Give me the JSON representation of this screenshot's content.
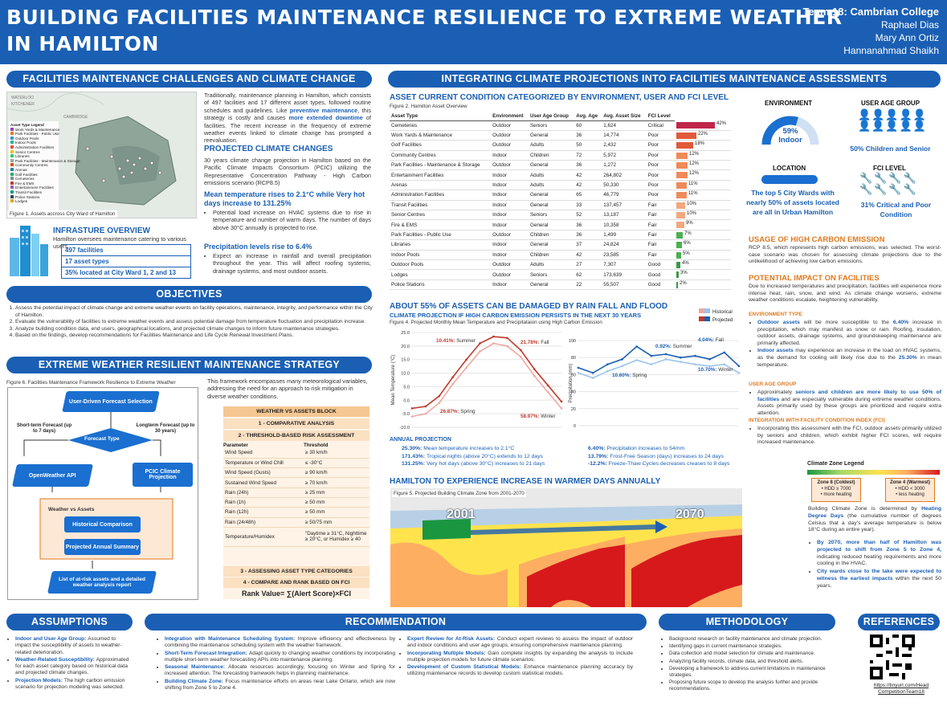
{
  "header": {
    "title_line1": "BUILDING FACILITIES MAINTENANCE RESILIENCE TO EXTREME WEATHER",
    "title_line2": "IN HAMILTON",
    "team": "Team 18: Cambrian College",
    "members": [
      "Raphael Dias",
      "Mary Ann Ortiz",
      "Hannanahmad Shaikh"
    ]
  },
  "challenges": {
    "heading": "FACILITIES MAINTENANCE CHALLENGES AND CLIMATE CHANGE",
    "p1a": "Traditionally, maintenance planning in Hamilton, which consists of 497 facilities and 17 different asset types, followed routine schedules and guidelines. Like ",
    "p1b": "preventive maintenance",
    "p1c": ", this strategy is costly and causes ",
    "p1d": "more extended downtime",
    "p1e": " of facilities. The recent increase in the frequency of extreme weather events linked to climate change has prompted a reevaluation.",
    "proj_h": "PROJECTED CLIMATE CHANGES",
    "proj_p": "30 years climate change projection in Hamilton based on the Pacific Climate Impacts Consortium (PCIC) utilizing the Representative Concentration Pathway - High Carbon emissions scenario (RCP8.5)",
    "temp_h": "Mean temperature rises to 2.1°C while Very hot days increase to 131.25%",
    "temp_b": "Potential load increase on HVAC systems due to rise in temperature and number of warm days. The number of days above 30°C annually is projected to rise.",
    "prec_h": "Precipitation levels rise to 6.4%",
    "prec_b": "Expect an increase in rainfall and overall precipitation throughout the year. This will affect roofing systems, drainage systems, and most outdoor assets.",
    "map_caption": "Figure 1. Assets accross City Ward of Hamilton",
    "map_legend_title": "Asset Type Legend",
    "map_legend": [
      "Work Yards & Maintenance",
      "Park Facilities - Public Use",
      "Outdoor Pools",
      "Indoor Pools",
      "Administration Facilities",
      "Senior Centres",
      "Libraries",
      "Park Facilities - Maintenance & Storage",
      "Community Centres",
      "Arenas",
      "Golf Facilities",
      "Cemeteries",
      "Fire & EMS",
      "Entertainment Facilities",
      "Transit Facilities",
      "Police Stations",
      "Lodges"
    ],
    "map_labels": [
      "WATERLOO",
      "KITCHENER",
      "CAMBRIDGE"
    ],
    "infra_h": "INFRASTURE OVERVIEW",
    "infra_p": "Hamilton oversees maintenance catering to various users.",
    "stats": [
      "497 facilities",
      "17 asset types",
      "35% located at City Ward 1, 2 and 13"
    ]
  },
  "objectives": {
    "heading": "OBJECTIVES",
    "items": [
      "Assess the potential impact of climate change and extreme weather events on facility operations, maintenance, integrity, and performance within the City of Hamilton.",
      "Evaluate the vulnerability of facilities to extreme weather events and assess potential damage from temperature fluctuation and precipitation increase.",
      "Analyze building condition data, end users, geographical locations, and projected climate changes to inform future maintenance strategies.",
      "Based on the findings, develop recommendations for Facilities Maintenance and Life Cycle Renewal Investment Plans."
    ]
  },
  "strategy": {
    "heading": "EXTREME WEATHER RESILIENT MAINTENANCE STRATEGY",
    "caption": "Figure 6. Facilities Maintenance Framework Resilience to Extreme Weather",
    "intro": "This framework encompasses many meteorological variables, addressing the need for an approach to risk mitigation in diverse weather conditions.",
    "flow": {
      "start": "User-Driven Forecast Selection",
      "short": "Short-term Forecast (up to 7 days)",
      "long": "Longterm Forecast (up to 30 years)",
      "decision": "Forecast Type",
      "api": "OpenWeather API",
      "pcic": "PCIC Climate Projection",
      "group": "Weather vs Assets",
      "hist": "Historical Comparison",
      "annual": "Projected Annual Summary",
      "output": "List of at-risk assets and a detailed weather analysis report"
    },
    "block_title": "WEATHER VS ASSETS BLOCK",
    "step1": "1 - COMPARATIVE ANALYSIS",
    "step2": "2 - THRESHOLD-BASED RISK ASSESSMENT",
    "th_header": [
      "Parameter",
      "Threshold"
    ],
    "thresholds": [
      [
        "Wind Speed",
        "≥ 30 km/h"
      ],
      [
        "Temperature or Wind Chill",
        "≤ -30°C"
      ],
      [
        "Wind Speed (Gusts)",
        "≥ 90 km/h"
      ],
      [
        "Sustained Wind Speed",
        "≥ 70 km/h"
      ],
      [
        "Rain (24h)",
        "≥ 25 mm"
      ],
      [
        "Rain (1h)",
        "≥ 50 mm"
      ],
      [
        "Rain (12h)",
        "≥ 50 mm"
      ],
      [
        "Rain (24/48h)",
        "≥ 50/75 mm"
      ],
      [
        "Temperature/Humidex",
        "\"Daytime ≥ 31°C, Nighttime ≥ 20°C, or Humidex ≥ 40"
      ]
    ],
    "step3": "3 - ASSESSING ASSET TYPE CATEGORIES",
    "step4": "4 - COMPARE AND RANK BASED ON FCI",
    "formula": "Rank Value= ∑(Alert Score)×FCI"
  },
  "integrating": {
    "heading": "INTEGRATING CLIMATE PROJECTIONS INTO FACILITIES MAINTENANCE ASSESSMENTS",
    "sub": "ASSET CURRENT CONDITION CATEGORIZED BY ENVIRONMENT, USER AND FCI LEVEL",
    "caption": "Figure 2. Hamilton Asset Overview",
    "table_header": [
      "Asset Type",
      "Environment",
      "User Age Group",
      "Avg. Age",
      "Avg. Asset Size",
      "FCI Level"
    ],
    "table_rows": [
      [
        "Cemeteries",
        "Outdoor",
        "Seniors",
        "60",
        "1,624",
        "Critical",
        "42%"
      ],
      [
        "Work Yards & Maintenance",
        "Outdoor",
        "General",
        "36",
        "14,774",
        "Poor",
        "22%"
      ],
      [
        "Golf Facilities",
        "Outdoor",
        "Adults",
        "50",
        "2,432",
        "Poor",
        "18%"
      ],
      [
        "Community Centres",
        "Indoor",
        "Children",
        "72",
        "5,972",
        "Poor",
        "12%"
      ],
      [
        "Park Facilities - Maintenance & Storage",
        "Outdoor",
        "General",
        "36",
        "1,272",
        "Poor",
        "12%"
      ],
      [
        "Entertainment Facilities",
        "Indoor",
        "Adults",
        "42",
        "264,802",
        "Poor",
        "12%"
      ],
      [
        "Arenas",
        "Indoor",
        "Adults",
        "42",
        "50,330",
        "Poor",
        "11%"
      ],
      [
        "Administration Facilities",
        "Indoor",
        "General",
        "65",
        "46,779",
        "Poor",
        "11%"
      ],
      [
        "Transit Facilities",
        "Indoor",
        "General",
        "33",
        "137,457",
        "Fair",
        "10%"
      ],
      [
        "Senior Centres",
        "Indoor",
        "Seniors",
        "52",
        "13,187",
        "Fair",
        "10%"
      ],
      [
        "Fire & EMS",
        "Indoor",
        "General",
        "36",
        "10,358",
        "Fair",
        "9%"
      ],
      [
        "Park Facilities - Public Use",
        "Outdoor",
        "Children",
        "36",
        "1,499",
        "Fair",
        "7%"
      ],
      [
        "Libraries",
        "Indoor",
        "General",
        "37",
        "24,824",
        "Fair",
        "6%"
      ],
      [
        "Indoor Pools",
        "Indoor",
        "Children",
        "42",
        "23,585",
        "Fair",
        "5%"
      ],
      [
        "Outdoor Pools",
        "Outdoor",
        "Adults",
        "27",
        "7,307",
        "Good",
        "4%"
      ],
      [
        "Lodges",
        "Outdoor",
        "Seniors",
        "62",
        "173,639",
        "Good",
        "3%"
      ],
      [
        "Police Stations",
        "Indoor",
        "General",
        "22",
        "55,507",
        "Good",
        "2%"
      ]
    ],
    "fci_values": [
      42,
      22,
      18,
      12,
      12,
      12,
      11,
      11,
      10,
      10,
      9,
      7,
      6,
      5,
      4,
      3,
      2
    ],
    "env_h": "ENVIRONMENT",
    "env_pct": "59%",
    "env_label": "Indoor",
    "env_value": 0.59,
    "age_h": "USER AGE GROUP",
    "age_text": "50% Children and Senior",
    "loc_h": "LOCATION",
    "loc_text": "The top 5 City Wards with nearly 50% of assets located are all in Urban Hamilton",
    "fci_h": "FCI LEVEL",
    "fci_text": "31% Critical and Poor Condition"
  },
  "carbon": {
    "h": "USAGE OF HIGH CARBON EMISSION",
    "p": "RCP 8.5, which represents high carbon emissions, was selected. The worst-case scenario was chosen for assessing climate projections due to the unlikelihood of achieving low carbon emissions."
  },
  "impact": {
    "h": "POTENTIAL IMPACT ON FACILITIES",
    "p": "Due to increased temperatures and precipitation, facilities will experience more intense heat, rain, snow, and wind. As climate change worsens, extreme weather conditions escalate, heightening vulnerability.",
    "env_sh": "ENVIRONMENT TYPE",
    "env_b1a": "Outdoor assets",
    "env_b1b": " will be more susceptible to the ",
    "env_b1c": "6.40%",
    "env_b1d": " increase in precipitation, which may manifest as snow or rain. Roofing, insulation, outdoor assets, drainage systems, and groundskeeping maintenance are primarily affected.",
    "env_b2a": "Indoor assets",
    "env_b2b": " may experience an increase in the load on HVAC systems, as the demand for cooling will likely rise due to the ",
    "env_b2c": "25.30%",
    "env_b2d": " in mean temperature.",
    "age_sh": "USER AGE GROUP",
    "age_b1": "Approximately ",
    "age_b2": "seniors and children are more likely to use 50% of facilities",
    "age_b3": " and are especially vulnerable during extreme weather conditions. Assets primarily used by these groups are prioritized and require extra attention.",
    "fci_sh": "INTEGRATION WITH FACILITY CONDITION INDEX (FCI)",
    "fci_b": "Incorporating this assessment with the FCI, outdoor assets primarily utilized by seniors and children, which exhibit higher FCI scores, will require increased maintenance."
  },
  "rain": {
    "h": "ABOUT 55% OF ASSETS CAN BE DAMAGED BY RAIN FALL AND FLOOD",
    "sub": "CLIMATE PROJECTION IF HIGH CARBON EMISSION PERSISTS IN THE NEXT 30 YEARS",
    "caption": "Figure 4. Projected Monthly Mean Temperature and Precipitataion using High Carbon Emission",
    "leg_hist": "Historical",
    "leg_proj": "Projected",
    "annual_h": "ANNUAL PROJECTION",
    "annual_left": [
      [
        "25.30%:",
        "Mean temperature increases to 2.1°C"
      ],
      [
        "171.43%:",
        "Tropical nights (above 20°C) extends to 12 days"
      ],
      [
        "131.25%:",
        "Very hot days (above 30°C) increases to 21 days"
      ]
    ],
    "annual_right": [
      [
        "6.40%:",
        "Precipitation increases to 54mm"
      ],
      [
        "13.79%:",
        "Frost-Free Season (days) increases to 24 days"
      ],
      [
        "-12.2%:",
        "Freeze-Thaw Cycles decreases creases to 8 days"
      ]
    ]
  },
  "chart_data": [
    {
      "type": "line",
      "ylabel": "Mean Temperature (°C)",
      "ylim": [
        -10,
        25
      ],
      "yticks": [
        "25.0",
        "20.0",
        "15.0",
        "10.0",
        "5.0",
        "0.0",
        "-5.0",
        "-10.0"
      ],
      "series": [
        {
          "name": "Historical",
          "values": [
            -6,
            -5,
            -1,
            6,
            12,
            18,
            21,
            20,
            16,
            9,
            3,
            -3
          ]
        },
        {
          "name": "Projected",
          "values": [
            -3,
            -2.3,
            1.5,
            8.5,
            15,
            21,
            23.5,
            23,
            18.5,
            11.5,
            5.5,
            -0.5
          ]
        }
      ],
      "annotations": [
        "10.41%: Summer",
        "21.78%: Fall",
        "26.87%: Spring",
        "58.97%: Winter"
      ]
    },
    {
      "type": "line",
      "ylabel": "Precipitation (mm)",
      "ylim": [
        0,
        100
      ],
      "yticks": [
        "100",
        "80",
        "60",
        "40",
        "20",
        "0"
      ],
      "series": [
        {
          "name": "Historical",
          "values": [
            62,
            56,
            64,
            70,
            77,
            72,
            78,
            75,
            72,
            70,
            72,
            62
          ]
        },
        {
          "name": "Projected",
          "values": [
            68,
            62,
            72,
            78,
            93,
            82,
            84,
            80,
            82,
            78,
            86,
            70
          ]
        }
      ],
      "annotations": [
        "0.92%: Summer",
        "4.04%: Fall",
        "10.60%: Spring",
        "10.70%: Winter"
      ]
    }
  ],
  "warmer": {
    "h": "HAMILTON TO EXPERIENCE INCREASE IN WARMER DAYS ANNUALLY",
    "caption": "Figure 5. Projected Building Climate Zone from 2001-2070",
    "year_from": "2001",
    "year_to": "2070",
    "legend_h": "Climate Zone Legend",
    "z8": "Zone 8 (Coldest)",
    "z8a": "• HDD ≥ 7000",
    "z8b": "• more heating",
    "z4": "Zone 4 (Warmest)",
    "z4a": "• HDD < 3000",
    "z4b": "• less heating",
    "p1a": "Building Climate Zone is determined by ",
    "p1b": "Heating Degree Days",
    "p1c": " (the cumulative number of degrees Celsius that a day's average temperature is below 18°C during an entire year).",
    "b1a": "By 2070, more than half of Hamilton was projected to shift from Zone 5 to Zone 4,",
    "b1b": " indicating reduced heating requirements and more cooling in the HVAC.",
    "b2a": "City wards close to the lake were expected to witness the earliest impacts",
    "b2b": " within the next 50 years.",
    "colors": {
      "zone4": "#d7191c",
      "zone5": "#fdae61",
      "zone6": "#ffe34d",
      "zone7": "#a6d96a",
      "zone8": "#1a9641"
    }
  },
  "assumptions": {
    "heading": "ASSUMPTIONS",
    "items": [
      [
        "Indoor and User Age Group:",
        "Assumed to impact the susceptibility of assets to weather-related deterioration."
      ],
      [
        "Weather-Related Susceptibility:",
        "Approximated for each asset category based on historical data and projected climate changes."
      ],
      [
        "Projection Models:",
        "The high carbon emission scenario for projection modeling was selected."
      ]
    ]
  },
  "recommendation": {
    "heading": "RECOMMENDATION",
    "left": [
      [
        "Integration with Maintenance Scheduling System:",
        "Improve efficiency and effectiveness by combining the maintenance scheduling system with the weather framework."
      ],
      [
        "Short-Term Forecast Integration:",
        "Adapt quickly to changing weather conditions by incorporating multiple short-term weather forecasting APIs into maintenance planning."
      ],
      [
        "Seasonal Maintenance:",
        "Allocate resources accordingly, focusing on Winter and Spring for increased attention. The forecasting framework helps in planning maintenance."
      ],
      [
        "Building Climate Zone:",
        "Focus maintenance efforts on areas near Lake Ontario, which are now shifting from Zone 5 to Zone 4."
      ]
    ],
    "right": [
      [
        "Expert Review for At-Risk Assets:",
        "Conduct expert reviews to assess the impact of outdoor and indoor conditions and user age groups, ensuring comprehensive maintenance planning."
      ],
      [
        "Incorporating Multiple Models:",
        "Gain complete insights by expanding the analysis to include multiple projection models for future climate scenarios."
      ],
      [
        "Development of Custom Statistical Models:",
        "Enhance maintenance planning accuracy by utilizing maintenance records to develop custom statistical models."
      ]
    ]
  },
  "methodology": {
    "heading": "METHODOLOGY",
    "items": [
      "Background research on facility maintenance and climate projection.",
      "Identifying gaps in current maintenance strategies.",
      "Data collection and model selection for climate and maintenance.",
      "Analyzing facility records, climate data, and threshold alerts.",
      "Developing a framework to address current limitations in maintenance strategies.",
      "Proposing future scope to develop the analysis further and provide recommendations."
    ]
  },
  "references": {
    "heading": "REFERENCES",
    "link": "https://tinyurl.com/Head CompetitionTeam18"
  },
  "colors": {
    "primary": "#1a5fb4",
    "accent": "#e07a1f",
    "critical": "#c0392b",
    "good": "#2e9d3e"
  }
}
